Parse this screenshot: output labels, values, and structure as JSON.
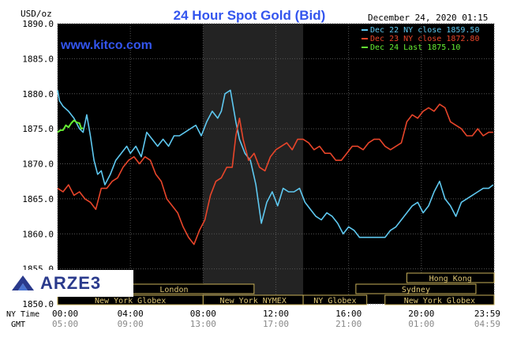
{
  "header": {
    "unit": "USD/oz",
    "title": "24 Hour Spot Gold (Bid)",
    "datetime": "December 24, 2020 01:15",
    "site": "www.kitco.com"
  },
  "logo": {
    "text": "ARZE3"
  },
  "chart_data": {
    "type": "line",
    "title": "24 Hour Spot Gold (Bid)",
    "ylabel": "USD/oz",
    "ylim": [
      1850,
      1890
    ],
    "yticks": [
      "1890.0",
      "1885.0",
      "1880.0",
      "1875.0",
      "1870.0",
      "1865.0",
      "1860.0",
      "1855.0",
      "1850.0"
    ],
    "x_ticks_ny": [
      "00:00",
      "04:00",
      "08:00",
      "12:00",
      "16:00",
      "20:00",
      "23:59"
    ],
    "x_ticks_gmt": [
      "05:00",
      "09:00",
      "13:00",
      "17:00",
      "21:00",
      "01:00",
      "04:59"
    ],
    "x_row_labels": {
      "ny": "NY Time",
      "gmt": "GMT"
    },
    "legend": [
      {
        "label": "Dec 22 NY close 1859.50",
        "color": "#5ec8f0"
      },
      {
        "label": "Dec 23 NY close 1872.80",
        "color": "#e8452a"
      },
      {
        "label": "Dec 24 Last 1875.10",
        "color": "#66ee33"
      }
    ],
    "sessions": [
      {
        "label": "Hong Kong",
        "row": 0,
        "start": 19.2,
        "end": 24.0
      },
      {
        "label": "Sydney",
        "row": 1,
        "start": 16.4,
        "end": 23.0
      },
      {
        "label": "London",
        "row": 1,
        "start": 2.0,
        "end": 10.8
      },
      {
        "label": "New York Globex",
        "row": 2,
        "start": 0.0,
        "end": 8.0
      },
      {
        "label": "New York NYMEX",
        "row": 2,
        "start": 8.0,
        "end": 13.5
      },
      {
        "label": "NY Globex",
        "row": 2,
        "start": 13.5,
        "end": 17.0
      },
      {
        "label": "New York Globex",
        "row": 2,
        "start": 18.0,
        "end": 24.0
      }
    ],
    "shaded_hours": [
      8.0,
      13.5
    ],
    "series": [
      {
        "name": "Dec 22 NY close 1859.50",
        "color": "#5ec8f0",
        "x": [
          0.0,
          0.1,
          0.3,
          0.6,
          0.9,
          1.2,
          1.4,
          1.6,
          1.8,
          2.0,
          2.2,
          2.4,
          2.6,
          2.9,
          3.2,
          3.5,
          3.8,
          4.0,
          4.3,
          4.6,
          4.9,
          5.2,
          5.5,
          5.8,
          6.1,
          6.4,
          6.7,
          7.0,
          7.3,
          7.6,
          7.9,
          8.2,
          8.5,
          8.8,
          9.0,
          9.2,
          9.5,
          9.8,
          10.0,
          10.3,
          10.6,
          10.9,
          11.2,
          11.5,
          11.8,
          12.1,
          12.4,
          12.7,
          13.0,
          13.3,
          13.6,
          13.9,
          14.2,
          14.5,
          14.8,
          15.1,
          15.4,
          15.7,
          16.0,
          16.3,
          16.6,
          16.9,
          17.2,
          17.5,
          17.8,
          18.0,
          18.3,
          18.6,
          18.9,
          19.2,
          19.5,
          19.8,
          20.1,
          20.4,
          20.7,
          21.0,
          21.3,
          21.6,
          21.9,
          22.2,
          22.5,
          22.8,
          23.1,
          23.4,
          23.7,
          23.95
        ],
        "y": [
          1880.5,
          1879.0,
          1878.2,
          1877.5,
          1876.5,
          1875.0,
          1874.5,
          1877.0,
          1874.0,
          1870.5,
          1868.5,
          1869.0,
          1867.0,
          1868.5,
          1870.5,
          1871.5,
          1872.5,
          1871.5,
          1872.5,
          1871.0,
          1874.5,
          1873.5,
          1872.5,
          1873.5,
          1872.5,
          1874.0,
          1874.0,
          1874.5,
          1875.0,
          1875.5,
          1874.0,
          1876.0,
          1877.5,
          1876.5,
          1877.5,
          1880.0,
          1880.5,
          1876.0,
          1873.5,
          1871.5,
          1870.5,
          1867.0,
          1861.5,
          1864.5,
          1866.0,
          1864.0,
          1866.5,
          1866.0,
          1866.0,
          1866.5,
          1864.5,
          1863.5,
          1862.5,
          1862.0,
          1863.0,
          1862.5,
          1861.5,
          1860.0,
          1861.0,
          1860.5,
          1859.5,
          1859.5,
          1859.5,
          1859.5,
          1859.5,
          1859.5,
          1860.5,
          1861.0,
          1862.0,
          1863.0,
          1864.0,
          1864.5,
          1863.0,
          1864.0,
          1866.0,
          1867.5,
          1865.0,
          1864.0,
          1862.5,
          1864.5,
          1865.0,
          1865.5,
          1866.0,
          1866.5,
          1866.5,
          1867.0
        ]
      },
      {
        "name": "Dec 23 NY close 1872.80",
        "color": "#e8452a",
        "x": [
          0.0,
          0.3,
          0.6,
          0.9,
          1.2,
          1.5,
          1.8,
          2.1,
          2.4,
          2.7,
          3.0,
          3.3,
          3.6,
          3.9,
          4.2,
          4.5,
          4.8,
          5.1,
          5.4,
          5.7,
          6.0,
          6.3,
          6.6,
          6.9,
          7.2,
          7.5,
          7.8,
          8.1,
          8.4,
          8.7,
          9.0,
          9.3,
          9.6,
          9.8,
          10.0,
          10.2,
          10.5,
          10.8,
          11.1,
          11.4,
          11.7,
          12.0,
          12.3,
          12.6,
          12.9,
          13.2,
          13.5,
          13.8,
          14.1,
          14.4,
          14.7,
          15.0,
          15.3,
          15.6,
          15.9,
          16.2,
          16.5,
          16.8,
          17.1,
          17.4,
          17.7,
          18.0,
          18.3,
          18.6,
          18.9,
          19.2,
          19.5,
          19.8,
          20.1,
          20.4,
          20.7,
          21.0,
          21.3,
          21.6,
          21.9,
          22.2,
          22.5,
          22.8,
          23.1,
          23.4,
          23.7,
          23.95
        ],
        "y": [
          1866.5,
          1866.0,
          1867.0,
          1865.5,
          1866.0,
          1865.0,
          1864.5,
          1863.5,
          1866.5,
          1866.5,
          1867.5,
          1868.0,
          1869.5,
          1870.5,
          1871.0,
          1870.0,
          1871.0,
          1870.5,
          1868.5,
          1867.5,
          1865.0,
          1864.0,
          1863.0,
          1861.0,
          1859.5,
          1858.5,
          1860.5,
          1862.0,
          1865.5,
          1867.5,
          1868.0,
          1869.5,
          1869.5,
          1874.0,
          1876.5,
          1873.5,
          1870.5,
          1871.5,
          1869.5,
          1869.0,
          1871.0,
          1872.0,
          1872.5,
          1873.0,
          1872.0,
          1873.5,
          1873.5,
          1873.0,
          1872.0,
          1872.5,
          1871.5,
          1871.5,
          1870.5,
          1870.5,
          1871.5,
          1872.5,
          1872.5,
          1872.0,
          1873.0,
          1873.5,
          1873.5,
          1872.5,
          1872.0,
          1872.5,
          1873.0,
          1876.0,
          1877.0,
          1876.5,
          1877.5,
          1878.0,
          1877.5,
          1878.5,
          1878.0,
          1876.0,
          1875.5,
          1875.0,
          1874.0,
          1874.0,
          1875.0,
          1874.0,
          1874.5,
          1874.5
        ]
      },
      {
        "name": "Dec 24 Last 1875.10",
        "color": "#66ee33",
        "x": [
          0.0,
          0.15,
          0.3,
          0.45,
          0.6,
          0.75,
          0.9,
          1.05,
          1.2,
          1.3,
          1.4
        ],
        "y": [
          1874.5,
          1874.8,
          1874.8,
          1875.5,
          1875.2,
          1875.8,
          1876.2,
          1875.9,
          1875.8,
          1875.0,
          1875.1
        ]
      }
    ]
  }
}
